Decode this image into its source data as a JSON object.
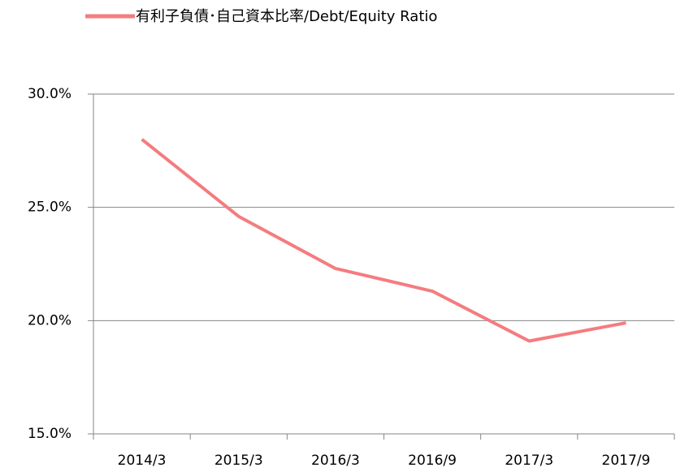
{
  "chart_data": {
    "type": "line",
    "categories": [
      "2014/3",
      "2015/3",
      "2016/3",
      "2016/9",
      "2017/3",
      "2017/9"
    ],
    "series": [
      {
        "name": "有利子負債･自己資本比率/Debt/Equity Ratio",
        "color": "#f47c7f",
        "values": [
          28.0,
          24.6,
          22.3,
          21.3,
          19.1,
          19.9
        ]
      }
    ],
    "ylim": [
      15,
      30
    ],
    "yticks": [
      {
        "value": 15,
        "label": "15.0%"
      },
      {
        "value": 20,
        "label": "20.0%"
      },
      {
        "value": 25,
        "label": "25.0%"
      },
      {
        "value": 30,
        "label": "30.0%"
      }
    ],
    "grid": true,
    "legend": "top"
  }
}
